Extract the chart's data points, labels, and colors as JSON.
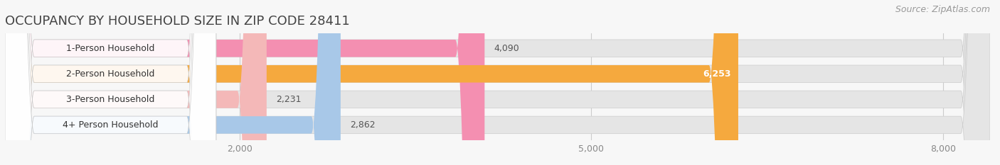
{
  "title": "OCCUPANCY BY HOUSEHOLD SIZE IN ZIP CODE 28411",
  "source": "Source: ZipAtlas.com",
  "categories": [
    "1-Person Household",
    "2-Person Household",
    "3-Person Household",
    "4+ Person Household"
  ],
  "values": [
    4090,
    6253,
    2231,
    2862
  ],
  "bar_colors": [
    "#f48fb1",
    "#f5a93e",
    "#f4b8b8",
    "#a8c8e8"
  ],
  "label_colors": [
    "#444444",
    "#ffffff",
    "#444444",
    "#444444"
  ],
  "xlim_max": 8400,
  "xticks": [
    2000,
    5000,
    8000
  ],
  "background_color": "#f7f7f7",
  "bar_bg_color": "#e5e5e5",
  "title_fontsize": 13,
  "source_fontsize": 9,
  "label_fontsize": 9,
  "tick_fontsize": 9,
  "cat_fontsize": 9
}
